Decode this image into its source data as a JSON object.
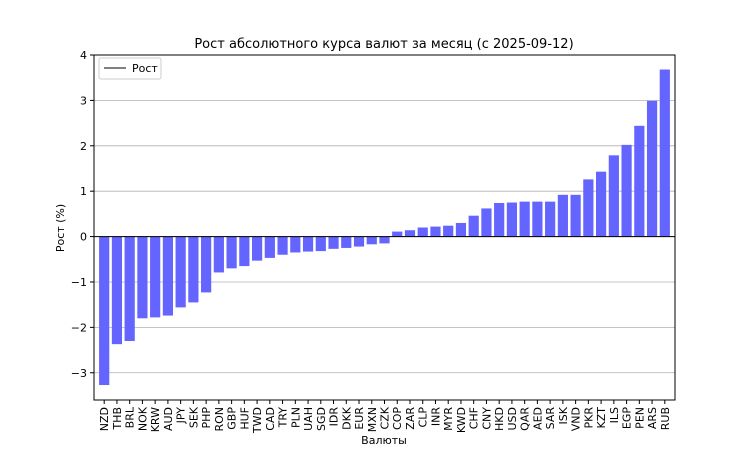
{
  "chart_data": {
    "type": "bar",
    "title": "Рост абсолютного курса валют за месяц (с 2025-09-12)",
    "xlabel": "Валюты",
    "ylabel": "Рост (%)",
    "ylim": [
      -3.6,
      4.0
    ],
    "yticks": [
      -3,
      -2,
      -1,
      0,
      1,
      2,
      3,
      4
    ],
    "ytick_labels": [
      "−3",
      "−2",
      "−1",
      "0",
      "1",
      "2",
      "3",
      "4"
    ],
    "grid": "horizontal",
    "legend": {
      "label": "Рост",
      "placement": "top-left"
    },
    "bar_color": "#6464ff",
    "zero_line_color": "#000000",
    "categories": [
      "NZD",
      "THB",
      "BRL",
      "NOK",
      "KRW",
      "AUD",
      "JPY",
      "SEK",
      "PHP",
      "RON",
      "GBP",
      "HUF",
      "TWD",
      "CAD",
      "TRY",
      "PLN",
      "UAH",
      "SGD",
      "IDR",
      "DKK",
      "EUR",
      "MXN",
      "CZK",
      "COP",
      "ZAR",
      "CLP",
      "INR",
      "MYR",
      "KWD",
      "CHF",
      "CNY",
      "HKD",
      "USD",
      "QAR",
      "AED",
      "SAR",
      "ISK",
      "VND",
      "PKR",
      "KZT",
      "ILS",
      "EGP",
      "PEN",
      "ARS",
      "RUB"
    ],
    "values": [
      -3.27,
      -2.37,
      -2.3,
      -1.8,
      -1.78,
      -1.74,
      -1.56,
      -1.45,
      -1.23,
      -0.79,
      -0.7,
      -0.65,
      -0.53,
      -0.47,
      -0.4,
      -0.35,
      -0.33,
      -0.32,
      -0.27,
      -0.25,
      -0.22,
      -0.17,
      -0.15,
      0.11,
      0.14,
      0.2,
      0.22,
      0.24,
      0.3,
      0.46,
      0.62,
      0.74,
      0.75,
      0.77,
      0.77,
      0.77,
      0.92,
      0.92,
      1.26,
      1.43,
      1.79,
      2.02,
      2.44,
      2.99,
      3.68
    ]
  }
}
